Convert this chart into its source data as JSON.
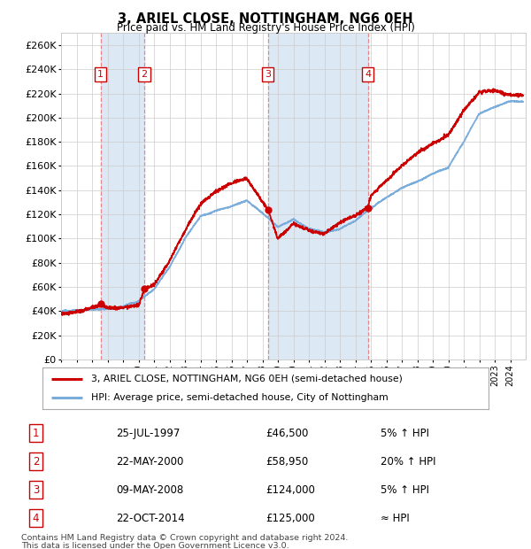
{
  "title": "3, ARIEL CLOSE, NOTTINGHAM, NG6 0EH",
  "subtitle": "Price paid vs. HM Land Registry's House Price Index (HPI)",
  "ylim": [
    0,
    270000
  ],
  "yticks": [
    0,
    20000,
    40000,
    60000,
    80000,
    100000,
    120000,
    140000,
    160000,
    180000,
    200000,
    220000,
    240000,
    260000
  ],
  "ytick_labels": [
    "£0",
    "£20K",
    "£40K",
    "£60K",
    "£80K",
    "£100K",
    "£120K",
    "£140K",
    "£160K",
    "£180K",
    "£200K",
    "£220K",
    "£240K",
    "£260K"
  ],
  "sale_points": [
    {
      "label": "1",
      "date_x": 1997.56,
      "price": 46500,
      "hpi_relation": "5% ↑ HPI",
      "date_str": "25-JUL-1997",
      "price_str": "£46,500"
    },
    {
      "label": "2",
      "date_x": 2000.38,
      "price": 58950,
      "hpi_relation": "20% ↑ HPI",
      "date_str": "22-MAY-2000",
      "price_str": "£58,950"
    },
    {
      "label": "3",
      "date_x": 2008.35,
      "price": 124000,
      "hpi_relation": "5% ↑ HPI",
      "date_str": "09-MAY-2008",
      "price_str": "£124,000"
    },
    {
      "label": "4",
      "date_x": 2014.81,
      "price": 125000,
      "hpi_relation": "≈ HPI",
      "date_str": "22-OCT-2014",
      "price_str": "£125,000"
    }
  ],
  "hpi_line_color": "#7aaddb",
  "price_line_color": "#cc0000",
  "sale_dot_color": "#cc0000",
  "sale_box_color": "#cc0000",
  "vline_color": "#e87474",
  "shade_color": "#dce9f5",
  "background_color": "#ffffff",
  "grid_color": "#cccccc",
  "legend_line1": "3, ARIEL CLOSE, NOTTINGHAM, NG6 0EH (semi-detached house)",
  "legend_line2": "HPI: Average price, semi-detached house, City of Nottingham",
  "footer1": "Contains HM Land Registry data © Crown copyright and database right 2024.",
  "footer2": "This data is licensed under the Open Government Licence v3.0.",
  "xmin": 1995.0,
  "xmax": 2025.0,
  "hpi_anchors": {
    "1995": 38500,
    "1996": 39500,
    "1997": 40500,
    "1998": 42000,
    "1999": 44000,
    "2000": 48000,
    "2001": 58000,
    "2002": 76000,
    "2003": 100000,
    "2004": 118000,
    "2005": 122000,
    "2006": 125000,
    "2007": 130000,
    "2008": 120000,
    "2009": 108000,
    "2010": 115000,
    "2011": 108000,
    "2012": 105000,
    "2013": 108000,
    "2014": 115000,
    "2015": 125000,
    "2016": 135000,
    "2017": 143000,
    "2018": 148000,
    "2019": 155000,
    "2020": 160000,
    "2021": 182000,
    "2022": 205000,
    "2023": 210000,
    "2024": 215000
  },
  "price_anchors": {
    "1995": 38000,
    "1996": 39000,
    "1997.56": 46500,
    "1998": 44500,
    "1999": 44000,
    "2000": 45000,
    "2000.38": 58950,
    "2001": 62000,
    "2002": 82000,
    "2003": 108000,
    "2004": 130000,
    "2005": 140000,
    "2006": 147000,
    "2007": 150000,
    "2008.35": 124000,
    "2009": 100000,
    "2010": 112000,
    "2011": 107000,
    "2012": 103000,
    "2013": 112000,
    "2014": 118000,
    "2014.81": 125000,
    "2015": 135000,
    "2016": 148000,
    "2017": 160000,
    "2018": 170000,
    "2019": 178000,
    "2020": 185000,
    "2021": 205000,
    "2022": 220000,
    "2023": 222000,
    "2024": 218000
  }
}
